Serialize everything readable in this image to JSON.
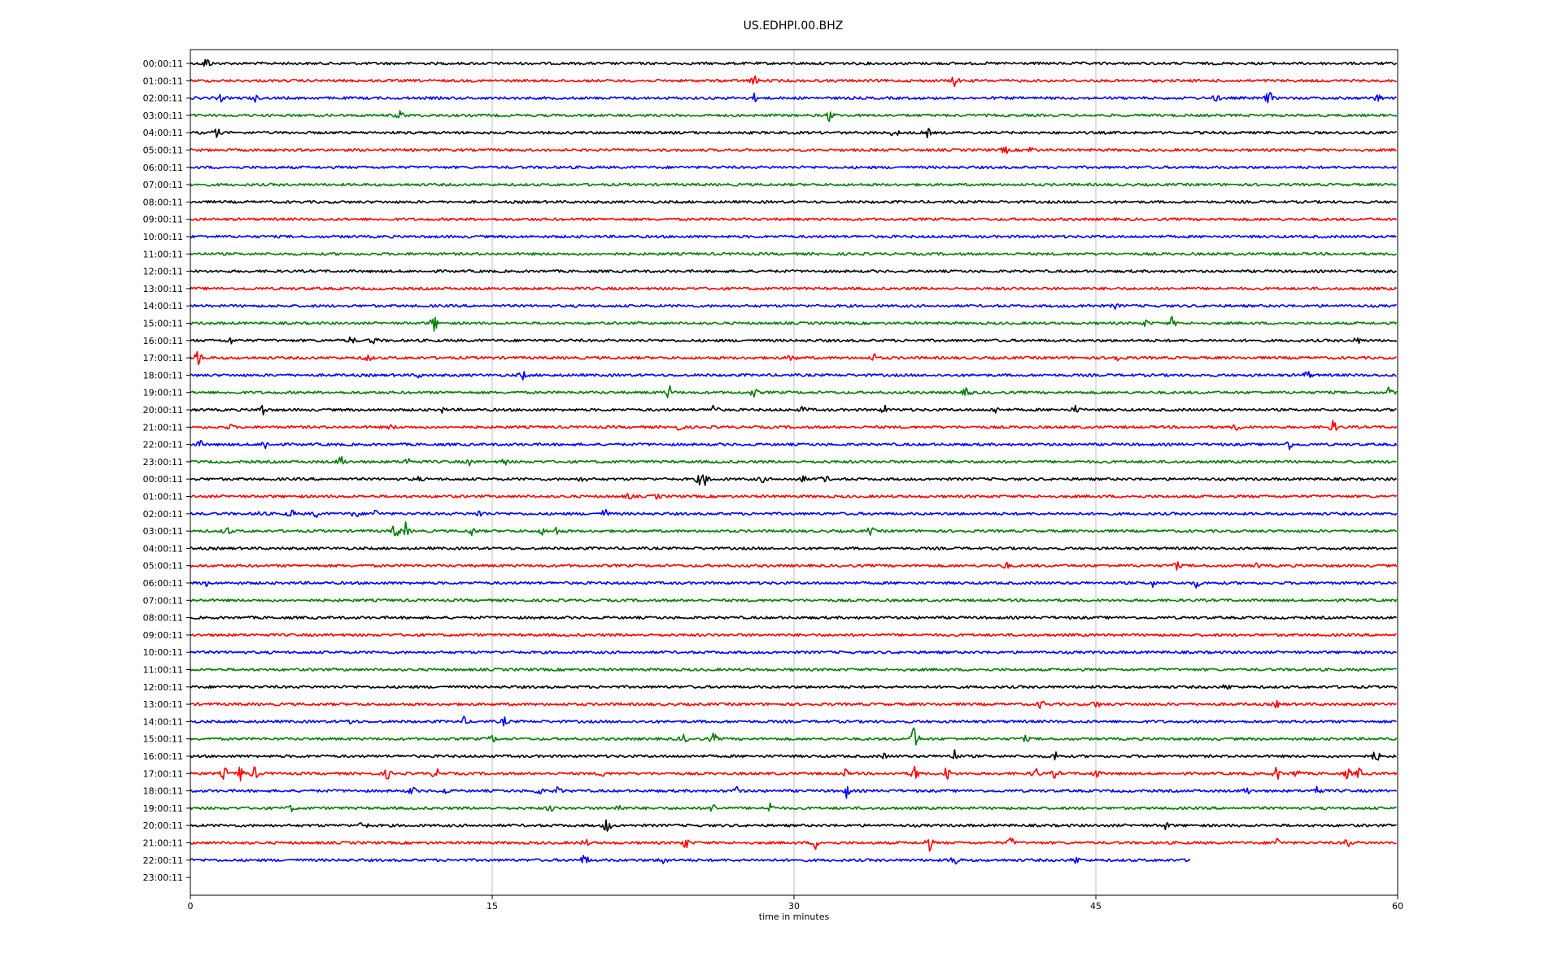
{
  "chart_data": {
    "type": "line",
    "title": "US.EDHPI.00.BHZ",
    "xlabel": "time in minutes",
    "ylabel": "",
    "xlim": [
      0,
      60
    ],
    "x_ticks": [
      "0",
      "15",
      "30",
      "45",
      "60"
    ],
    "grid": "vertical",
    "color_cycle": [
      "#000000",
      "#ff0000",
      "#0000ff",
      "#008000"
    ],
    "row_labels": [
      "00:00:11",
      "01:00:11",
      "02:00:11",
      "03:00:11",
      "04:00:11",
      "05:00:11",
      "06:00:11",
      "07:00:11",
      "08:00:11",
      "09:00:11",
      "10:00:11",
      "11:00:11",
      "12:00:11",
      "13:00:11",
      "14:00:11",
      "15:00:11",
      "16:00:11",
      "17:00:11",
      "18:00:11",
      "19:00:11",
      "20:00:11",
      "21:00:11",
      "22:00:11",
      "23:00:11",
      "00:00:11",
      "01:00:11",
      "02:00:11",
      "03:00:11",
      "04:00:11",
      "05:00:11",
      "06:00:11",
      "07:00:11",
      "08:00:11",
      "09:00:11",
      "10:00:11",
      "11:00:11",
      "12:00:11",
      "13:00:11",
      "14:00:11",
      "15:00:11",
      "16:00:11",
      "17:00:11",
      "18:00:11",
      "19:00:11",
      "20:00:11",
      "21:00:11",
      "22:00:11",
      "23:00:11"
    ],
    "trace_end_minutes": [
      60,
      60,
      60,
      60,
      60,
      60,
      60,
      60,
      60,
      60,
      60,
      60,
      60,
      60,
      60,
      60,
      60,
      60,
      60,
      60,
      60,
      60,
      60,
      60,
      60,
      60,
      60,
      60,
      60,
      60,
      60,
      60,
      60,
      60,
      60,
      60,
      60,
      60,
      60,
      60,
      60,
      60,
      60,
      60,
      60,
      60,
      49.7,
      0
    ],
    "events": [
      [
        [
          0.8,
          9
        ]
      ],
      [
        [
          28,
          8
        ],
        [
          38,
          7
        ]
      ],
      [
        [
          1.5,
          4
        ],
        [
          3.2,
          4
        ],
        [
          28,
          5
        ],
        [
          51,
          4
        ],
        [
          53.6,
          9
        ],
        [
          59,
          6
        ]
      ],
      [
        [
          10.4,
          6
        ],
        [
          31.8,
          9
        ]
      ],
      [
        [
          1.3,
          6
        ],
        [
          35,
          6
        ],
        [
          36.6,
          7
        ]
      ],
      [
        [
          40.5,
          5
        ],
        [
          41.8,
          4
        ]
      ],
      [],
      [],
      [],
      [],
      [],
      [],
      [],
      [],
      [
        [
          44.5,
          4
        ],
        [
          46,
          3
        ]
      ],
      [
        [
          12.1,
          11
        ],
        [
          47.5,
          4
        ],
        [
          48.8,
          7
        ]
      ],
      [
        [
          2,
          4
        ],
        [
          8,
          5
        ],
        [
          9.1,
          5
        ],
        [
          58,
          4
        ]
      ],
      [
        [
          0.4,
          10
        ],
        [
          8.8,
          6
        ],
        [
          29.9,
          6
        ],
        [
          34,
          5
        ],
        [
          46,
          5
        ]
      ],
      [
        [
          11.3,
          3
        ],
        [
          16.5,
          6
        ],
        [
          55.5,
          6
        ]
      ],
      [
        [
          23.8,
          9
        ],
        [
          28,
          6
        ],
        [
          38.6,
          8
        ],
        [
          59.6,
          7
        ]
      ],
      [
        [
          3.6,
          8
        ],
        [
          12.5,
          3
        ],
        [
          26,
          9
        ],
        [
          30.5,
          5
        ],
        [
          34.5,
          5
        ],
        [
          40,
          4
        ],
        [
          44,
          5
        ]
      ],
      [
        [
          2,
          3
        ],
        [
          10,
          3
        ],
        [
          24.3,
          4
        ],
        [
          52,
          5
        ],
        [
          56.8,
          8
        ]
      ],
      [
        [
          0.5,
          4
        ],
        [
          3.7,
          7
        ],
        [
          54.6,
          6
        ]
      ],
      [
        [
          7.5,
          9
        ],
        [
          10.8,
          5
        ],
        [
          13.9,
          4
        ],
        [
          15.6,
          4
        ]
      ],
      [
        [
          11.3,
          3
        ],
        [
          19.5,
          4
        ],
        [
          25.3,
          6
        ],
        [
          25.6,
          9
        ],
        [
          28.4,
          4
        ],
        [
          30.4,
          6
        ],
        [
          31.5,
          6
        ]
      ],
      [
        [
          21.8,
          4
        ],
        [
          23.2,
          3
        ]
      ],
      [
        [
          3.5,
          4
        ],
        [
          5,
          6
        ],
        [
          6.2,
          5
        ],
        [
          8.2,
          6
        ],
        [
          9.2,
          5
        ],
        [
          14.4,
          5
        ],
        [
          20.6,
          6
        ]
      ],
      [
        [
          1.8,
          7
        ],
        [
          10.2,
          12
        ],
        [
          10.7,
          10
        ],
        [
          14,
          6
        ],
        [
          17.5,
          4
        ],
        [
          18.2,
          5
        ],
        [
          33.8,
          5
        ]
      ],
      [],
      [
        [
          40.5,
          5
        ],
        [
          49,
          5
        ],
        [
          53,
          3
        ]
      ],
      [
        [
          0.8,
          3
        ],
        [
          47.8,
          5
        ],
        [
          50,
          5
        ]
      ],
      [],
      [],
      [],
      [],
      [],
      [
        [
          51.5,
          4
        ]
      ],
      [
        [
          42.3,
          6
        ],
        [
          45,
          5
        ],
        [
          54,
          4
        ]
      ],
      [
        [
          8,
          4
        ],
        [
          13.6,
          5
        ],
        [
          15.6,
          5
        ]
      ],
      [
        [
          15,
          5
        ],
        [
          24.5,
          6
        ],
        [
          26,
          7
        ],
        [
          36,
          20
        ],
        [
          41.5,
          3
        ]
      ],
      [
        [
          34.5,
          3
        ],
        [
          38,
          8
        ],
        [
          43,
          6
        ],
        [
          58.9,
          9
        ]
      ],
      [
        [
          1.7,
          8
        ],
        [
          2.5,
          10
        ],
        [
          3.2,
          8
        ],
        [
          9.8,
          7
        ],
        [
          12.2,
          7
        ],
        [
          20.5,
          4
        ],
        [
          32.5,
          6
        ],
        [
          36,
          11
        ],
        [
          37.6,
          9
        ],
        [
          42,
          8
        ],
        [
          43,
          7
        ],
        [
          45,
          6
        ],
        [
          54,
          9
        ],
        [
          55,
          7
        ],
        [
          57.5,
          7
        ],
        [
          58.1,
          7
        ]
      ],
      [
        [
          11,
          6
        ],
        [
          12.6,
          5
        ],
        [
          17.3,
          6
        ],
        [
          18.3,
          6
        ],
        [
          27.2,
          6
        ],
        [
          32.6,
          8
        ],
        [
          52.5,
          5
        ],
        [
          56,
          10
        ]
      ],
      [
        [
          5,
          4
        ],
        [
          17.9,
          5
        ],
        [
          21.3,
          5
        ],
        [
          26,
          6
        ],
        [
          28.8,
          7
        ]
      ],
      [
        [
          8.6,
          7
        ],
        [
          20.7,
          10
        ],
        [
          48.5,
          5
        ]
      ],
      [
        [
          19.6,
          5
        ],
        [
          24.6,
          8
        ],
        [
          31.1,
          8
        ],
        [
          36.7,
          11
        ],
        [
          40.8,
          7
        ],
        [
          54,
          6
        ],
        [
          57.5,
          7
        ]
      ],
      [
        [
          19.6,
          8
        ],
        [
          23.5,
          6
        ],
        [
          38,
          8
        ],
        [
          44,
          5
        ]
      ],
      []
    ]
  }
}
